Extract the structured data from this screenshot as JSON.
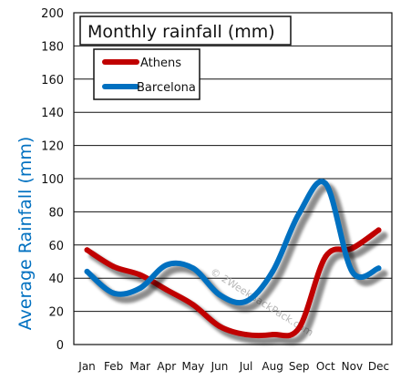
{
  "chart_data": {
    "type": "line",
    "title": "Monthly rainfall (mm)",
    "xlabel": "",
    "ylabel": "Average Rainfall (mm)",
    "categories": [
      "Jan",
      "Feb",
      "Mar",
      "Apr",
      "May",
      "Jun",
      "Jul",
      "Aug",
      "Sep",
      "Oct",
      "Nov",
      "Dec"
    ],
    "ylim": [
      0,
      200
    ],
    "yticks": [
      "0",
      "20",
      "40",
      "60",
      "80",
      "100",
      "120",
      "140",
      "160",
      "180",
      "200"
    ],
    "grid": true,
    "legend_position": "top-left",
    "series": [
      {
        "name": "Athens",
        "color": "#c00000",
        "values": [
          57,
          47,
          42,
          33,
          24,
          11,
          6,
          6,
          10,
          53,
          58,
          69
        ]
      },
      {
        "name": "Barcelona",
        "color": "#0070c0",
        "values": [
          44,
          31,
          34,
          48,
          46,
          30,
          26,
          44,
          79,
          97,
          44,
          46
        ]
      }
    ],
    "ylabel_color": "#0070c0",
    "watermark": "© 2WeekBackPack.com"
  }
}
